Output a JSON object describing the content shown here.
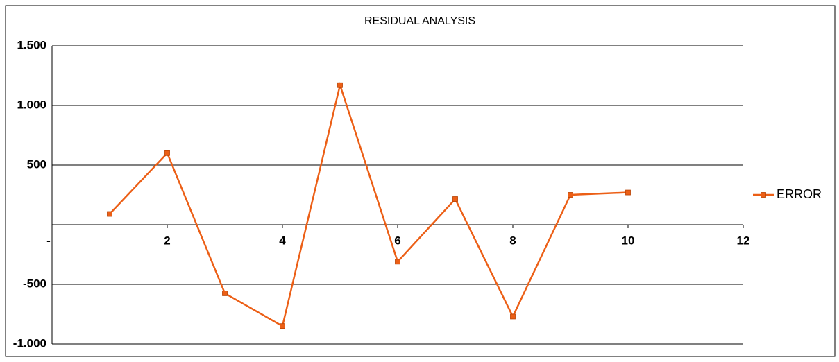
{
  "chart_data": {
    "type": "line",
    "title": "RESIDUAL ANALYSIS",
    "x": [
      1,
      2,
      3,
      4,
      5,
      6,
      7,
      8,
      9,
      10
    ],
    "series": [
      {
        "name": "ERROR",
        "color": "#ec5f16",
        "values": [
          90,
          600,
          -575,
          -850,
          1170,
          -310,
          215,
          -770,
          250,
          270
        ]
      }
    ],
    "xlim": [
      0,
      12
    ],
    "xticks": [
      {
        "value": 0,
        "label": "-"
      },
      2,
      4,
      6,
      8,
      10,
      12
    ],
    "ylim": [
      -1000,
      1500
    ],
    "yticks": [
      {
        "value": -1000,
        "label": "-1.000"
      },
      {
        "value": -500,
        "label": "-500"
      },
      500,
      {
        "value": 1000,
        "label": "1.000"
      },
      {
        "value": 1500,
        "label": "1.500"
      }
    ],
    "grid": true,
    "legend": "right"
  }
}
